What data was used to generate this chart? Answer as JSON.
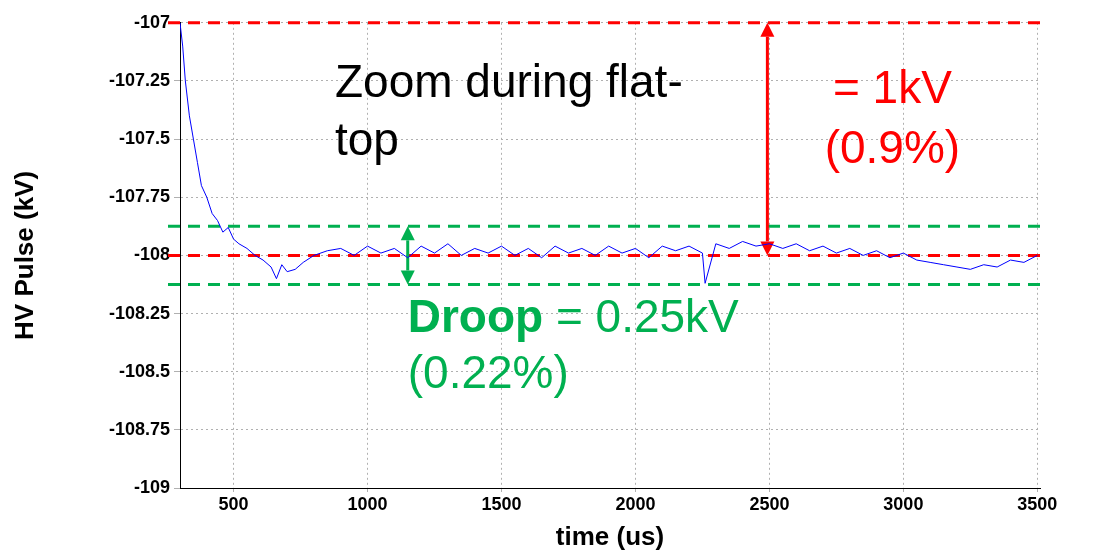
{
  "chart_data": {
    "type": "line",
    "xlabel": "time (us)",
    "ylabel": "HV Pulse (kV)",
    "x": [
      300,
      310,
      320,
      335,
      350,
      365,
      380,
      400,
      420,
      440,
      460,
      480,
      500,
      520,
      550,
      580,
      610,
      640,
      660,
      680,
      700,
      730,
      760,
      800,
      850,
      900,
      950,
      1000,
      1050,
      1100,
      1150,
      1200,
      1250,
      1300,
      1350,
      1400,
      1450,
      1500,
      1550,
      1600,
      1650,
      1700,
      1750,
      1800,
      1850,
      1900,
      1950,
      2000,
      2050,
      2100,
      2150,
      2200,
      2250,
      2260,
      2300,
      2350,
      2400,
      2450,
      2500,
      2550,
      2600,
      2650,
      2700,
      2750,
      2800,
      2850,
      2900,
      2950,
      3000,
      3050,
      3100,
      3150,
      3200,
      3250,
      3300,
      3350,
      3400,
      3450,
      3500
    ],
    "series": [
      {
        "color": "#0000ff",
        "values": [
          -107.0,
          -107.1,
          -107.25,
          -107.4,
          -107.5,
          -107.6,
          -107.7,
          -107.75,
          -107.82,
          -107.85,
          -107.9,
          -107.88,
          -107.93,
          -107.95,
          -107.97,
          -108.0,
          -108.02,
          -108.05,
          -108.1,
          -108.04,
          -108.07,
          -108.06,
          -108.03,
          -108.0,
          -107.98,
          -107.97,
          -108.0,
          -107.96,
          -107.99,
          -107.97,
          -108.01,
          -107.96,
          -107.99,
          -107.95,
          -108.0,
          -107.97,
          -107.99,
          -107.96,
          -108.0,
          -107.97,
          -108.01,
          -107.96,
          -107.99,
          -107.97,
          -108.0,
          -107.96,
          -107.99,
          -107.97,
          -108.01,
          -107.96,
          -107.98,
          -107.96,
          -107.99,
          -108.12,
          -107.95,
          -107.97,
          -107.94,
          -107.96,
          -107.95,
          -107.97,
          -107.95,
          -107.98,
          -107.96,
          -107.99,
          -107.97,
          -108.0,
          -107.98,
          -108.01,
          -107.99,
          -108.02,
          -108.03,
          -108.04,
          -108.05,
          -108.06,
          -108.04,
          -108.05,
          -108.02,
          -108.03,
          -108.0
        ]
      }
    ],
    "xlim": [
      300,
      3510
    ],
    "xticks": [
      500,
      1000,
      1500,
      2000,
      2500,
      3000,
      3500
    ],
    "ylim": [
      -109,
      -107
    ],
    "yticks": [
      -109,
      -108.75,
      -108.5,
      -108.25,
      -108,
      -107.75,
      -107.5,
      -107.25,
      -107
    ],
    "grid": true,
    "legend": false,
    "marker": "none",
    "line_style": "solid",
    "ref_lines": [
      {
        "axis": "y",
        "value": -107,
        "color": "#ff0000",
        "line_style": "dashed"
      },
      {
        "axis": "y",
        "value": -108,
        "color": "#ff0000",
        "line_style": "dashed"
      },
      {
        "axis": "y",
        "value": -107.875,
        "color": "#00b050",
        "line_style": "dashed"
      },
      {
        "axis": "y",
        "value": -108.125,
        "color": "#00b050",
        "line_style": "dashed"
      }
    ],
    "annotations": [
      "Zoom during flat-top",
      "= 1kV (0.9%)",
      {
        "text": "Droop = 0.25kV (0.22%)",
        "x": 1150,
        "y": -108.125
      }
    ]
  }
}
